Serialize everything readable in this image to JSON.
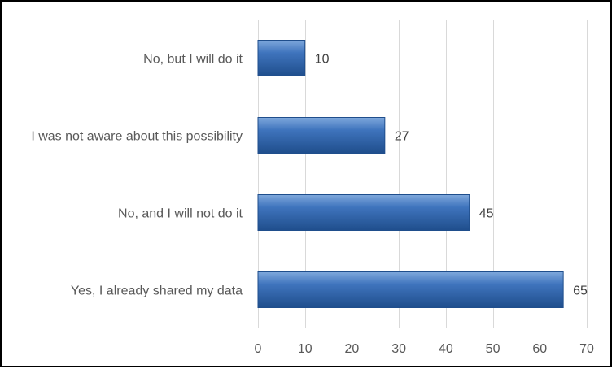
{
  "chart_data": {
    "type": "bar",
    "orientation": "horizontal",
    "categories": [
      "No, but I will do it",
      "I was not aware about this possibility",
      "No, and I will not do it",
      "Yes, I already shared my data"
    ],
    "values": [
      10,
      27,
      45,
      65
    ],
    "data_labels": [
      "10",
      "27",
      "45",
      "65"
    ],
    "title": "",
    "xlabel": "",
    "ylabel": "",
    "xlim": [
      0,
      70
    ],
    "x_ticks": [
      0,
      10,
      20,
      30,
      40,
      50,
      60,
      70
    ],
    "x_tick_labels": [
      "0",
      "10",
      "20",
      "30",
      "40",
      "50",
      "60",
      "70"
    ],
    "grid": true,
    "legend": "none",
    "colors": {
      "bar_fill": "#3f74bd",
      "bar_highlight": "#7fa8dc",
      "bar_edge": "#1f4e8c",
      "grid": "#d9d9d9",
      "frame": "#000000",
      "label_text": "#595959",
      "value_text": "#404040"
    }
  }
}
